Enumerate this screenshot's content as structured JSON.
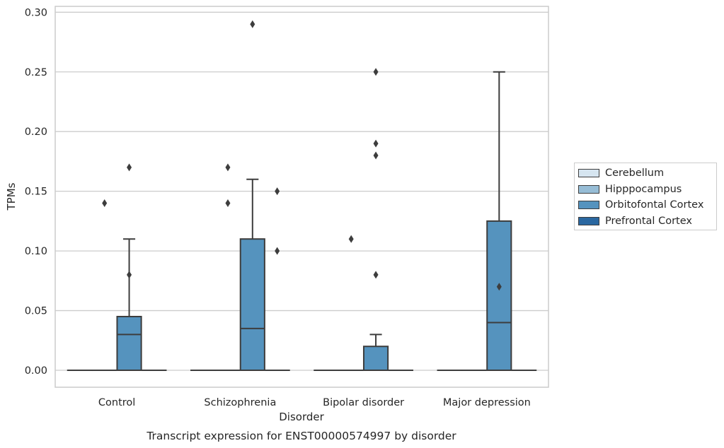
{
  "caption": "Transcript expression for ENST00000574997 by disorder",
  "chart_data": {
    "type": "box",
    "title": "",
    "xlabel": "Disorder",
    "ylabel": "TPMs",
    "categories": [
      "Control",
      "Schizophrenia",
      "Bipolar disorder",
      "Major depression"
    ],
    "ylim": [
      -0.014,
      0.305
    ],
    "yticks": [
      "0.00",
      "0.05",
      "0.10",
      "0.15",
      "0.20",
      "0.25",
      "0.30"
    ],
    "grid": true,
    "legend_position": "right",
    "hue_order": [
      "Cerebellum",
      "Hipppocampus",
      "Orbitofontal Cortex",
      "Prefrontal Cortex"
    ],
    "hue_colors": [
      "#d6e5f0",
      "#97bdd6",
      "#5593be",
      "#2a67a0"
    ],
    "series": [
      {
        "name": "Cerebellum",
        "boxes": [
          {
            "category": "Control",
            "q1": 0,
            "median": 0,
            "q3": 0,
            "whisker_low": 0,
            "whisker_high": 0,
            "outliers": []
          },
          {
            "category": "Schizophrenia",
            "q1": 0,
            "median": 0,
            "q3": 0,
            "whisker_low": 0,
            "whisker_high": 0,
            "outliers": []
          },
          {
            "category": "Bipolar disorder",
            "q1": 0,
            "median": 0,
            "q3": 0,
            "whisker_low": 0,
            "whisker_high": 0,
            "outliers": []
          },
          {
            "category": "Major depression",
            "q1": 0,
            "median": 0,
            "q3": 0,
            "whisker_low": 0,
            "whisker_high": 0,
            "outliers": []
          }
        ]
      },
      {
        "name": "Hipppocampus",
        "boxes": [
          {
            "category": "Control",
            "q1": 0,
            "median": 0,
            "q3": 0,
            "whisker_low": 0,
            "whisker_high": 0,
            "outliers": [
              0.14
            ]
          },
          {
            "category": "Schizophrenia",
            "q1": 0,
            "median": 0,
            "q3": 0,
            "whisker_low": 0,
            "whisker_high": 0,
            "outliers": [
              0.17,
              0.14
            ]
          },
          {
            "category": "Bipolar disorder",
            "q1": 0,
            "median": 0,
            "q3": 0,
            "whisker_low": 0,
            "whisker_high": 0,
            "outliers": [
              0.11
            ]
          },
          {
            "category": "Major depression",
            "q1": 0,
            "median": 0,
            "q3": 0,
            "whisker_low": 0,
            "whisker_high": 0,
            "outliers": []
          }
        ]
      },
      {
        "name": "Orbitofontal Cortex",
        "boxes": [
          {
            "category": "Control",
            "q1": 0,
            "median": 0.03,
            "q3": 0.045,
            "whisker_low": 0,
            "whisker_high": 0.11,
            "outliers": [
              0.17,
              0.08
            ]
          },
          {
            "category": "Schizophrenia",
            "q1": 0,
            "median": 0.035,
            "q3": 0.11,
            "whisker_low": 0,
            "whisker_high": 0.16,
            "outliers": [
              0.29
            ]
          },
          {
            "category": "Bipolar disorder",
            "q1": 0,
            "median": 0,
            "q3": 0.02,
            "whisker_low": 0,
            "whisker_high": 0.03,
            "outliers": [
              0.25,
              0.19,
              0.18,
              0.08
            ]
          },
          {
            "category": "Major depression",
            "q1": 0,
            "median": 0.04,
            "q3": 0.125,
            "whisker_low": 0,
            "whisker_high": 0.25,
            "outliers": [
              0.07
            ]
          }
        ]
      },
      {
        "name": "Prefrontal Cortex",
        "boxes": [
          {
            "category": "Control",
            "q1": 0,
            "median": 0,
            "q3": 0,
            "whisker_low": 0,
            "whisker_high": 0,
            "outliers": []
          },
          {
            "category": "Schizophrenia",
            "q1": 0,
            "median": 0,
            "q3": 0,
            "whisker_low": 0,
            "whisker_high": 0,
            "outliers": [
              0.15,
              0.1
            ]
          },
          {
            "category": "Bipolar disorder",
            "q1": 0,
            "median": 0,
            "q3": 0,
            "whisker_low": 0,
            "whisker_high": 0,
            "outliers": []
          },
          {
            "category": "Major depression",
            "q1": 0,
            "median": 0,
            "q3": 0,
            "whisker_low": 0,
            "whisker_high": 0,
            "outliers": []
          }
        ]
      }
    ]
  }
}
